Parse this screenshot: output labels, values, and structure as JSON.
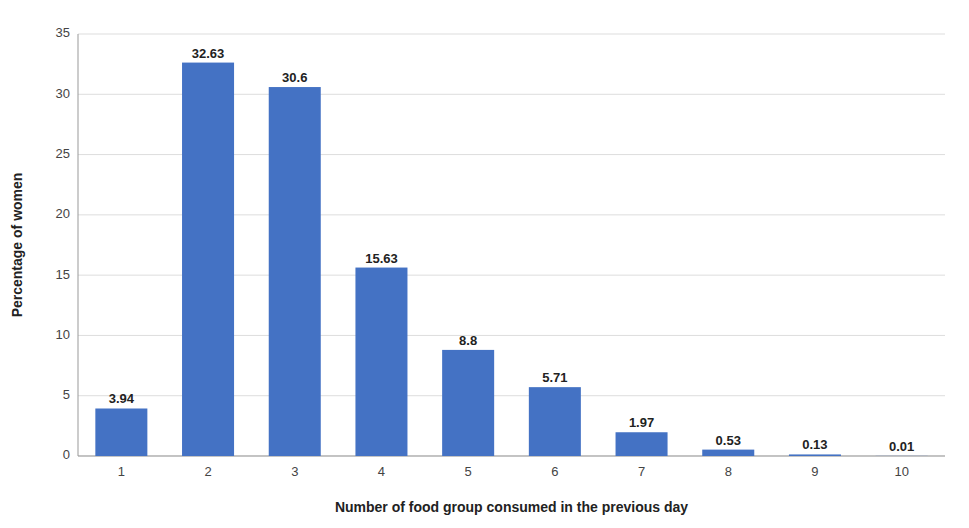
{
  "chart_data": {
    "type": "bar",
    "categories": [
      "1",
      "2",
      "3",
      "4",
      "5",
      "6",
      "7",
      "8",
      "9",
      "10"
    ],
    "values": [
      3.94,
      32.63,
      30.6,
      15.63,
      8.8,
      5.71,
      1.97,
      0.53,
      0.13,
      0.01
    ],
    "color": "#4472C4",
    "xlabel": "Number of food group consumed in the previous day",
    "ylabel": "Percentage of women",
    "ylim": [
      0,
      35
    ],
    "yticks": [
      0,
      5,
      10,
      15,
      20,
      25,
      30,
      35
    ],
    "grid": true,
    "data_labels": true
  }
}
